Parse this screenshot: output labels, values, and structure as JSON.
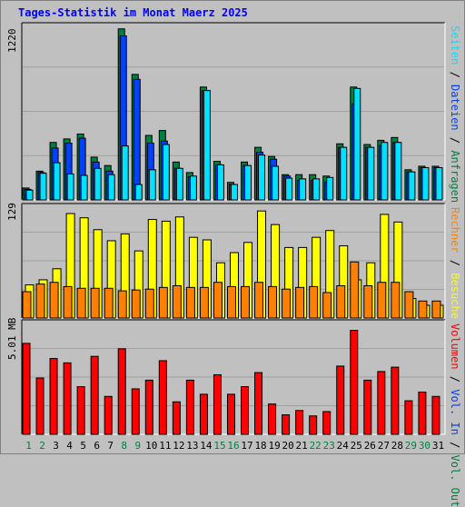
{
  "title": "Tages-Statistik im Monat Maerz 2025",
  "colors": {
    "hits": "#008040",
    "files": "#0040ff",
    "pages": "#00e0ff",
    "visits": "#ffff00",
    "sites": "#ff8000",
    "kbytes": "#ff0000",
    "weekend_day": "#008040",
    "weekday": "#000000"
  },
  "legends": {
    "top": [
      {
        "text": "Seiten",
        "color": "#00e0ff"
      },
      {
        "text": " / ",
        "color": "#000000"
      },
      {
        "text": "Dateien",
        "color": "#0040ff"
      },
      {
        "text": " / ",
        "color": "#000000"
      },
      {
        "text": "Anfragen",
        "color": "#008040"
      }
    ],
    "middle": [
      {
        "text": "Rechner",
        "color": "#ff8000"
      },
      {
        "text": " / ",
        "color": "#000000"
      },
      {
        "text": "Besuche",
        "color": "#ffff00"
      }
    ],
    "bottom": [
      {
        "text": "Volumen",
        "color": "#ff0000"
      },
      {
        "text": " / ",
        "color": "#000000"
      },
      {
        "text": "Vol. In",
        "color": "#0040ff"
      },
      {
        "text": " / ",
        "color": "#000000"
      },
      {
        "text": "Vol. Out",
        "color": "#008040"
      }
    ]
  },
  "chart_data": [
    {
      "type": "bar",
      "panel": "top",
      "ymax_label": "1220",
      "ymax": 1220,
      "categories": [
        "1",
        "2",
        "3",
        "4",
        "5",
        "6",
        "7",
        "8",
        "9",
        "10",
        "11",
        "12",
        "13",
        "14",
        "15",
        "16",
        "17",
        "18",
        "19",
        "20",
        "21",
        "22",
        "23",
        "24",
        "25",
        "26",
        "27",
        "28",
        "29",
        "30",
        "31"
      ],
      "series": [
        {
          "name": "Anfragen",
          "values": [
            85,
            205,
            410,
            435,
            470,
            305,
            245,
            1220,
            895,
            460,
            495,
            270,
            195,
            805,
            275,
            125,
            270,
            375,
            310,
            180,
            180,
            180,
            170,
            400,
            805,
            395,
            425,
            445,
            215,
            240,
            240
          ]
        },
        {
          "name": "Dateien",
          "values": [
            75,
            195,
            370,
            405,
            440,
            270,
            205,
            1170,
            860,
            405,
            420,
            225,
            165,
            780,
            250,
            110,
            245,
            340,
            290,
            170,
            140,
            140,
            130,
            375,
            685,
            375,
            390,
            410,
            200,
            230,
            230
          ]
        },
        {
          "name": "Seiten",
          "values": [
            70,
            190,
            265,
            185,
            175,
            225,
            180,
            385,
            110,
            215,
            395,
            225,
            170,
            780,
            250,
            110,
            245,
            320,
            240,
            155,
            150,
            150,
            160,
            375,
            795,
            375,
            410,
            410,
            200,
            230,
            230
          ]
        }
      ]
    },
    {
      "type": "bar",
      "panel": "middle",
      "ymax_label": "129",
      "ymax": 129,
      "categories": [
        "1",
        "2",
        "3",
        "4",
        "5",
        "6",
        "7",
        "8",
        "9",
        "10",
        "11",
        "12",
        "13",
        "14",
        "15",
        "16",
        "17",
        "18",
        "19",
        "20",
        "21",
        "22",
        "23",
        "24",
        "25",
        "26",
        "27",
        "28",
        "29",
        "30",
        "31"
      ],
      "series": [
        {
          "name": "Besuche",
          "values": [
            39,
            45,
            58,
            123,
            118,
            104,
            91,
            99,
            79,
            116,
            114,
            119,
            95,
            92,
            65,
            77,
            89,
            126,
            110,
            83,
            83,
            95,
            103,
            85,
            45,
            65,
            122,
            113,
            23,
            15,
            15
          ]
        },
        {
          "name": "Rechner",
          "values": [
            31,
            40,
            42,
            37,
            35,
            35,
            35,
            32,
            33,
            34,
            36,
            38,
            36,
            36,
            42,
            37,
            37,
            42,
            37,
            34,
            36,
            37,
            30,
            38,
            66,
            38,
            42,
            42,
            31,
            20,
            20
          ]
        }
      ]
    },
    {
      "type": "bar",
      "panel": "bottom",
      "ymax_label": "5.01 MB",
      "ymax": 5.01,
      "categories": [
        "1",
        "2",
        "3",
        "4",
        "5",
        "6",
        "7",
        "8",
        "9",
        "10",
        "11",
        "12",
        "13",
        "14",
        "15",
        "16",
        "17",
        "18",
        "19",
        "20",
        "21",
        "22",
        "23",
        "24",
        "25",
        "26",
        "27",
        "28",
        "29",
        "30",
        "31"
      ],
      "series": [
        {
          "name": "Volumen",
          "values": [
            4.2,
            2.6,
            3.5,
            3.3,
            2.2,
            3.6,
            1.75,
            3.95,
            2.1,
            2.5,
            3.4,
            1.5,
            2.5,
            1.85,
            2.75,
            1.85,
            2.2,
            2.85,
            1.4,
            0.9,
            1.1,
            0.85,
            1.05,
            3.15,
            4.8,
            2.5,
            2.9,
            3.1,
            1.55,
            1.95,
            1.75
          ]
        }
      ]
    }
  ],
  "weekend_days": [
    "1",
    "2",
    "8",
    "9",
    "15",
    "16",
    "22",
    "23",
    "29",
    "30"
  ]
}
